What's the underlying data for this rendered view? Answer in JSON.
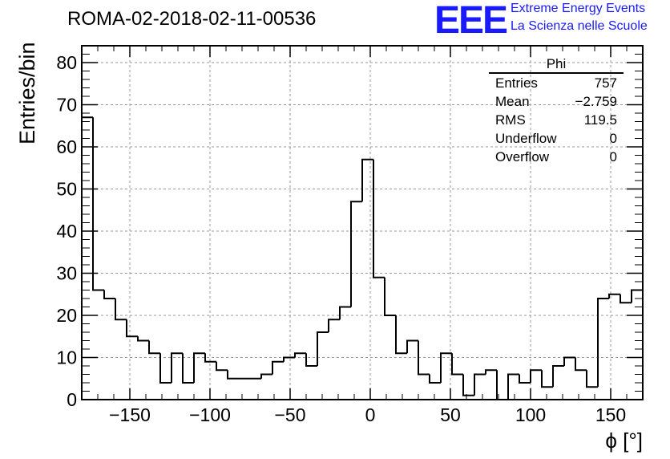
{
  "header": {
    "title": "ROMA-02-2018-02-11-00536",
    "logo_text": "EEE",
    "logo_line1": "Extreme Energy Events",
    "logo_line2": "La Scienza nelle Scuole",
    "accent_color": "#1a1aff"
  },
  "stats_box": {
    "title": "Phi",
    "rows": [
      {
        "label": "Entries",
        "value": "757"
      },
      {
        "label": "Mean",
        "value": "−2.759"
      },
      {
        "label": "RMS",
        "value": "119.5"
      },
      {
        "label": "Underflow",
        "value": "0"
      },
      {
        "label": "Overflow",
        "value": "0"
      }
    ]
  },
  "chart_data": {
    "type": "bar",
    "title": "",
    "xlabel": "ϕ [°]",
    "ylabel": "Entries/bin",
    "xlim": [
      -180,
      170
    ],
    "ylim": [
      0,
      84
    ],
    "bin_width": 7,
    "x_ticks": [
      -150,
      -100,
      -50,
      0,
      50,
      100,
      150
    ],
    "x_tick_labels": [
      "−150",
      "−100",
      "−50",
      "0",
      "50",
      "100",
      "150"
    ],
    "y_ticks": [
      0,
      10,
      20,
      30,
      40,
      50,
      60,
      70,
      80
    ],
    "y_tick_labels": [
      "0",
      "10",
      "20",
      "30",
      "40",
      "50",
      "60",
      "70",
      "80"
    ],
    "grid": true,
    "bin_edges_start": -180,
    "values": [
      67,
      26,
      24,
      19,
      15,
      14,
      11,
      4,
      11,
      4,
      11,
      9,
      7,
      5,
      5,
      5,
      6,
      9,
      10,
      11,
      8,
      16,
      19,
      22,
      47,
      57,
      29,
      20,
      11,
      14,
      6,
      4,
      11,
      6,
      1,
      6,
      7,
      0,
      6,
      4,
      7,
      3,
      8,
      10,
      7,
      3,
      24,
      25,
      23,
      26
    ]
  }
}
